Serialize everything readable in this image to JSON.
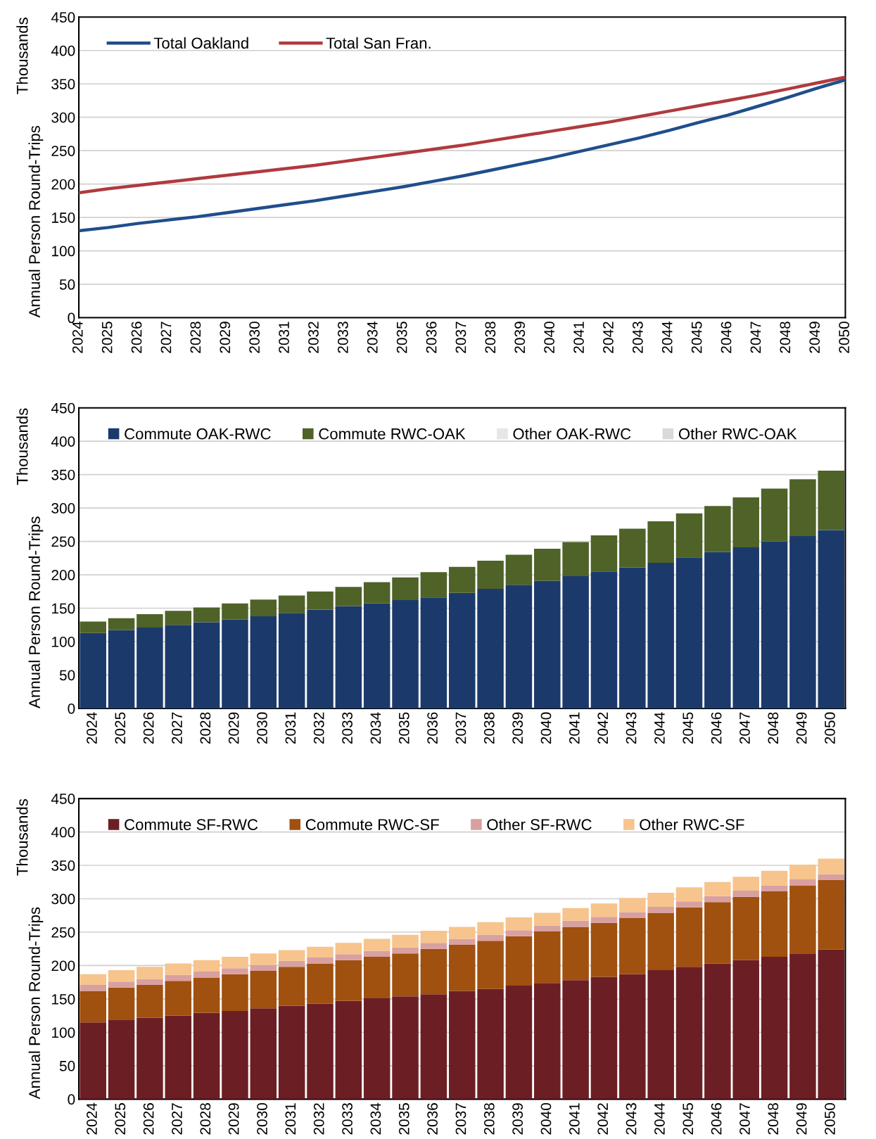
{
  "chart_data": [
    {
      "type": "line",
      "ylabel": "Annual Person Round-Trips",
      "annotations": [
        "Thousands"
      ],
      "categories": [
        "2024",
        "2025",
        "2026",
        "2027",
        "2028",
        "2029",
        "2030",
        "2031",
        "2032",
        "2033",
        "2034",
        "2035",
        "2036",
        "2037",
        "2038",
        "2039",
        "2040",
        "2041",
        "2042",
        "2043",
        "2044",
        "2045",
        "2046",
        "2047",
        "2048",
        "2049",
        "2050"
      ],
      "ylim": [
        0,
        450
      ],
      "yticks": [
        0,
        50,
        100,
        150,
        200,
        250,
        300,
        350,
        400,
        450
      ],
      "grid": "y",
      "legend": "top left",
      "marker": "none",
      "line_style": "solid",
      "series": [
        {
          "name": "Total Oakland",
          "color": "#1f4e8c",
          "values": [
            130,
            135,
            141,
            146,
            151,
            157,
            163,
            169,
            175,
            182,
            189,
            196,
            204,
            212,
            221,
            230,
            239,
            249,
            259,
            269,
            280,
            292,
            303,
            316,
            329,
            343,
            356
          ]
        },
        {
          "name": "Total San Fran.",
          "color": "#b03a3e",
          "values": [
            187,
            193,
            198,
            203,
            208,
            213,
            218,
            223,
            228,
            234,
            240,
            246,
            252,
            258,
            265,
            272,
            279,
            286,
            293,
            301,
            309,
            317,
            325,
            333,
            342,
            351,
            360
          ]
        }
      ]
    },
    {
      "type": "bar",
      "stacked": true,
      "ylabel": "Annual Person Round-Trips",
      "annotations": [
        "Thousands"
      ],
      "categories": [
        "2024",
        "2025",
        "2026",
        "2027",
        "2028",
        "2029",
        "2030",
        "2031",
        "2032",
        "2033",
        "2034",
        "2035",
        "2036",
        "2037",
        "2038",
        "2039",
        "2040",
        "2041",
        "2042",
        "2043",
        "2044",
        "2045",
        "2046",
        "2047",
        "2048",
        "2049",
        "2050"
      ],
      "ylim": [
        0,
        450
      ],
      "yticks": [
        0,
        50,
        100,
        150,
        200,
        250,
        300,
        350,
        400,
        450
      ],
      "grid": "y",
      "legend": "top left",
      "series": [
        {
          "name": "Commute OAK-RWC",
          "color": "#1b3a6b",
          "values": [
            113,
            117,
            121,
            125,
            129,
            133,
            138,
            143,
            148,
            153,
            157,
            162,
            166,
            173,
            179,
            185,
            191,
            198,
            205,
            211,
            218,
            226,
            234,
            241,
            250,
            258,
            267
          ]
        },
        {
          "name": "Commute RWC-OAK",
          "color": "#4f6228",
          "values": [
            17,
            18,
            20,
            21,
            22,
            24,
            25,
            26,
            27,
            29,
            32,
            34,
            38,
            39,
            42,
            45,
            48,
            51,
            54,
            58,
            62,
            66,
            69,
            75,
            79,
            85,
            89
          ]
        },
        {
          "name": "Other OAK-RWC",
          "color": "#e6e6e6",
          "values": [
            null,
            null,
            null,
            null,
            null,
            null,
            null,
            null,
            null,
            null,
            null,
            null,
            null,
            null,
            null,
            null,
            null,
            null,
            null,
            null,
            null,
            null,
            null,
            null,
            null,
            null,
            null
          ]
        },
        {
          "name": "Other RWC-OAK",
          "color": "#d9d9d9",
          "values": [
            null,
            null,
            null,
            null,
            null,
            null,
            null,
            null,
            null,
            null,
            null,
            null,
            null,
            null,
            null,
            null,
            null,
            null,
            null,
            null,
            null,
            null,
            null,
            null,
            null,
            null,
            null
          ]
        }
      ]
    },
    {
      "type": "bar",
      "stacked": true,
      "ylabel": "Annual Person Round-Trips",
      "annotations": [
        "Thousands"
      ],
      "categories": [
        "2024",
        "2025",
        "2026",
        "2027",
        "2028",
        "2029",
        "2030",
        "2031",
        "2032",
        "2033",
        "2034",
        "2035",
        "2036",
        "2037",
        "2038",
        "2039",
        "2040",
        "2041",
        "2042",
        "2043",
        "2044",
        "2045",
        "2046",
        "2047",
        "2048",
        "2049",
        "2050"
      ],
      "ylim": [
        0,
        450
      ],
      "yticks": [
        0,
        50,
        100,
        150,
        200,
        250,
        300,
        350,
        400,
        450
      ],
      "grid": "y",
      "legend": "top left",
      "series": [
        {
          "name": "Commute SF-RWC",
          "color": "#6b1f24",
          "values": [
            115,
            119,
            122,
            125,
            129,
            132,
            136,
            140,
            143,
            147,
            151,
            154,
            157,
            162,
            165,
            170,
            174,
            178,
            183,
            187,
            193,
            198,
            203,
            208,
            213,
            218,
            224
          ]
        },
        {
          "name": "Commute RWC-SF",
          "color": "#a0500f",
          "values": [
            47,
            48,
            49,
            52,
            53,
            55,
            56,
            58,
            60,
            61,
            62,
            64,
            68,
            69,
            72,
            74,
            77,
            80,
            81,
            84,
            86,
            89,
            92,
            95,
            98,
            102,
            104
          ]
        },
        {
          "name": "Other SF-RWC",
          "color": "#d9a0a0",
          "values": [
            9,
            9,
            9,
            9,
            9,
            9,
            9,
            9,
            9,
            9,
            9,
            9,
            9,
            9,
            9,
            9,
            9,
            9,
            9,
            9,
            9,
            9,
            9,
            9,
            9,
            9,
            9
          ]
        },
        {
          "name": "Other RWC-SF",
          "color": "#f6c48c",
          "values": [
            16,
            17,
            18,
            17,
            17,
            17,
            17,
            16,
            16,
            17,
            18,
            19,
            18,
            18,
            19,
            19,
            19,
            19,
            20,
            21,
            21,
            21,
            21,
            21,
            22,
            22,
            23
          ]
        }
      ]
    }
  ]
}
